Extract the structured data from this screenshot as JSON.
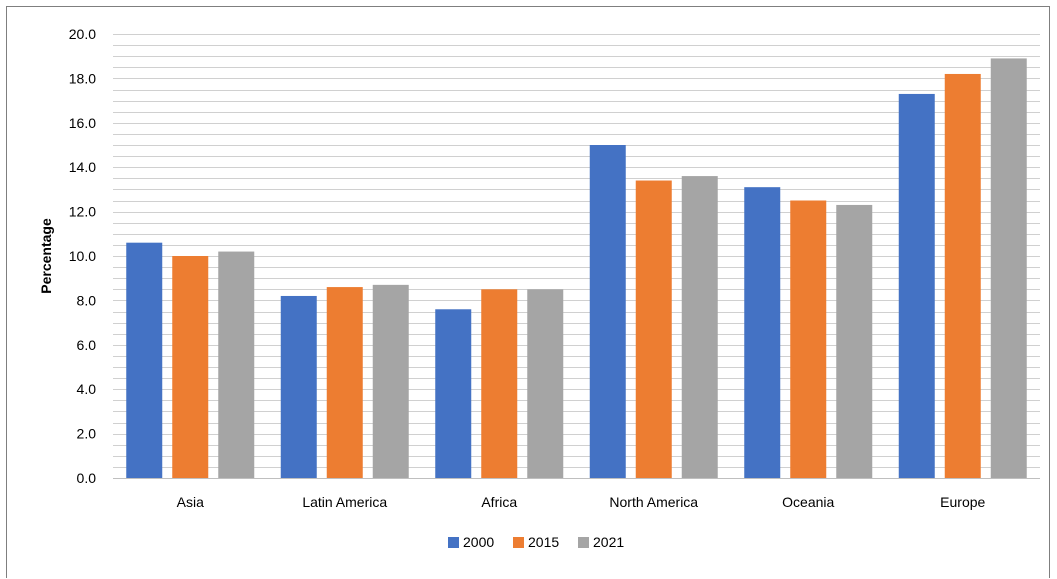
{
  "chart_data": {
    "type": "bar",
    "title": "",
    "xlabel": "",
    "ylabel": "Percentage",
    "ylim": [
      0,
      20
    ],
    "y_ticks": [
      "0.0",
      "2.0",
      "4.0",
      "6.0",
      "8.0",
      "10.0",
      "12.0",
      "14.0",
      "16.0",
      "18.0",
      "20.0"
    ],
    "grid": true,
    "legend_position": "bottom",
    "categories": [
      "Asia",
      "Latin America",
      "Africa",
      "North America",
      "Oceania",
      "Europe"
    ],
    "series": [
      {
        "name": "2000",
        "color": "#4472c4",
        "values": [
          10.6,
          8.2,
          7.6,
          15.0,
          13.1,
          17.3
        ]
      },
      {
        "name": "2015",
        "color": "#ed7d31",
        "values": [
          10.0,
          8.6,
          8.5,
          13.4,
          12.5,
          18.2
        ]
      },
      {
        "name": "2021",
        "color": "#a5a5a5",
        "values": [
          10.2,
          8.7,
          8.5,
          13.6,
          12.3,
          18.9
        ]
      }
    ]
  }
}
